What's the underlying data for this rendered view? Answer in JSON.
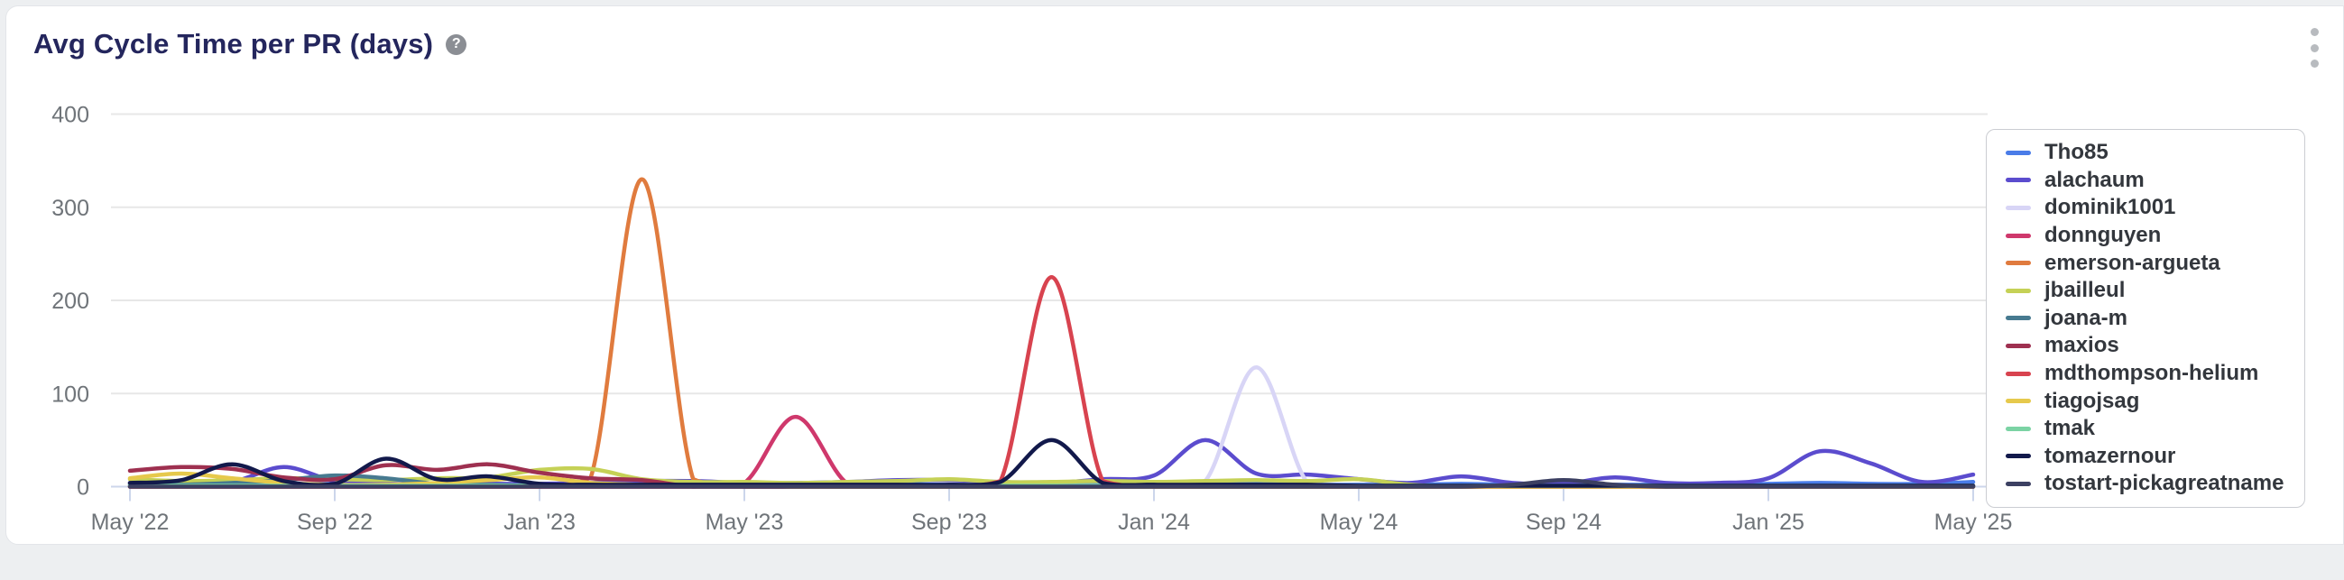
{
  "header": {
    "title": "Avg Cycle Time per PR (days)",
    "help_glyph": "?"
  },
  "chart_data": {
    "type": "line",
    "title": "Avg Cycle Time per PR (days)",
    "xlabel": "",
    "ylabel": "",
    "x_unit": "month",
    "x_range": [
      "May '22",
      "May '25"
    ],
    "ylim": [
      0,
      400
    ],
    "y_ticks": [
      0,
      100,
      200,
      300,
      400
    ],
    "x_tick_labels": [
      "May '22",
      "Sep '22",
      "Jan '23",
      "May '23",
      "Sep '23",
      "Jan '24",
      "May '24",
      "Sep '24",
      "Jan '25",
      "May '25"
    ],
    "grid": "horizontal",
    "legend_position": "right",
    "months": [
      "May 22",
      "Jun 22",
      "Jul 22",
      "Aug 22",
      "Sep 22",
      "Oct 22",
      "Nov 22",
      "Dec 22",
      "Jan 23",
      "Feb 23",
      "Mar 23",
      "Apr 23",
      "May 23",
      "Jun 23",
      "Jul 23",
      "Aug 23",
      "Sep 23",
      "Oct 23",
      "Nov 23",
      "Dec 23",
      "Jan 24",
      "Feb 24",
      "Mar 24",
      "Apr 24",
      "May 24",
      "Jun 24",
      "Jul 24",
      "Aug 24",
      "Sep 24",
      "Oct 24",
      "Nov 24",
      "Dec 24",
      "Jan 25",
      "Feb 25",
      "Mar 25",
      "Apr 25",
      "May 25"
    ],
    "series": [
      {
        "name": "Tho85",
        "color": "#4a7ce8",
        "values": [
          4,
          3,
          2,
          2,
          3,
          2,
          2,
          3,
          2,
          2,
          3,
          4,
          3,
          2,
          2,
          3,
          2,
          2,
          2,
          2,
          3,
          4,
          3,
          2,
          2,
          2,
          3,
          2,
          2,
          2,
          2,
          2,
          3,
          4,
          3,
          3,
          5
        ]
      },
      {
        "name": "alachaum",
        "color": "#5b4cce",
        "values": [
          4,
          3,
          5,
          21,
          6,
          3,
          3,
          3,
          3,
          4,
          6,
          6,
          4,
          4,
          5,
          7,
          7,
          5,
          4,
          8,
          12,
          50,
          14,
          13,
          8,
          4,
          11,
          4,
          3,
          10,
          4,
          4,
          9,
          38,
          25,
          5,
          13
        ]
      },
      {
        "name": "dominik1001",
        "color": "#d8d5f6",
        "values": [
          0,
          0,
          0,
          0,
          0,
          0,
          0,
          0,
          0,
          0,
          0,
          0,
          0,
          0,
          0,
          0,
          0,
          0,
          0,
          0,
          2,
          6,
          128,
          4,
          0,
          0,
          0,
          0,
          0,
          0,
          0,
          0,
          0,
          0,
          0,
          0,
          0
        ]
      },
      {
        "name": "donnguyen",
        "color": "#cf386c",
        "values": [
          0,
          0,
          0,
          0,
          0,
          0,
          0,
          0,
          0,
          0,
          0,
          0,
          4,
          75,
          4,
          0,
          0,
          0,
          0,
          0,
          0,
          0,
          0,
          0,
          0,
          0,
          0,
          0,
          0,
          0,
          0,
          0,
          0,
          0,
          0,
          0,
          0
        ]
      },
      {
        "name": "emerson-argueta",
        "color": "#e07b3e",
        "values": [
          0,
          0,
          0,
          0,
          0,
          0,
          0,
          0,
          0,
          10,
          330,
          8,
          0,
          0,
          0,
          0,
          0,
          0,
          0,
          0,
          0,
          0,
          0,
          0,
          0,
          0,
          0,
          0,
          0,
          0,
          0,
          0,
          0,
          0,
          0,
          0,
          0
        ]
      },
      {
        "name": "jbailleul",
        "color": "#c5d156",
        "values": [
          8,
          6,
          7,
          9,
          8,
          7,
          9,
          10,
          18,
          19,
          8,
          5,
          5,
          4,
          5,
          6,
          8,
          5,
          5,
          6,
          5,
          6,
          7,
          6,
          8,
          2,
          0,
          0,
          0,
          0,
          0,
          0,
          0,
          0,
          0,
          0,
          0
        ]
      },
      {
        "name": "joana-m",
        "color": "#477a90",
        "values": [
          2,
          2,
          4,
          7,
          12,
          9,
          3,
          2,
          1,
          1,
          1,
          1,
          1,
          1,
          1,
          0,
          0,
          0,
          0,
          0,
          0,
          0,
          0,
          0,
          0,
          0,
          0,
          0,
          0,
          0,
          0,
          0,
          0,
          0,
          0,
          0,
          0
        ]
      },
      {
        "name": "maxios",
        "color": "#9e3050",
        "values": [
          17,
          21,
          19,
          10,
          8,
          23,
          18,
          24,
          15,
          9,
          7,
          0,
          0,
          0,
          0,
          0,
          0,
          0,
          0,
          0,
          0,
          0,
          0,
          0,
          0,
          0,
          0,
          0,
          0,
          0,
          0,
          0,
          0,
          0,
          0,
          0,
          0
        ]
      },
      {
        "name": "mdthompson-helium",
        "color": "#d8434f",
        "values": [
          0,
          0,
          0,
          0,
          0,
          0,
          0,
          0,
          0,
          0,
          0,
          0,
          0,
          0,
          0,
          0,
          0,
          6,
          225,
          6,
          0,
          0,
          0,
          0,
          0,
          0,
          0,
          0,
          0,
          0,
          0,
          0,
          0,
          0,
          0,
          0,
          0
        ]
      },
      {
        "name": "tiagojsag",
        "color": "#e6c94c",
        "values": [
          9,
          14,
          9,
          4,
          2,
          2,
          4,
          7,
          10,
          4,
          2,
          1,
          1,
          0,
          0,
          0,
          0,
          0,
          0,
          0,
          0,
          0,
          0,
          0,
          0,
          0,
          0,
          0,
          0,
          0,
          0,
          0,
          0,
          0,
          0,
          0,
          0
        ]
      },
      {
        "name": "tmak",
        "color": "#7bd3a4",
        "values": [
          1,
          1,
          1,
          1,
          1,
          1,
          1,
          1,
          1,
          1,
          1,
          1,
          1,
          1,
          1,
          1,
          1,
          1,
          1,
          1,
          1,
          1,
          1,
          1,
          1,
          1,
          1,
          1,
          1,
          1,
          1,
          1,
          1,
          1,
          1,
          1,
          1
        ]
      },
      {
        "name": "tomazernour",
        "color": "#12194b",
        "values": [
          4,
          7,
          24,
          6,
          3,
          30,
          8,
          11,
          3,
          2,
          2,
          2,
          2,
          2,
          2,
          2,
          2,
          5,
          50,
          4,
          2,
          2,
          2,
          2,
          1,
          1,
          1,
          1,
          1,
          1,
          1,
          1,
          1,
          1,
          1,
          1,
          1
        ]
      },
      {
        "name": "tostart-pickagreatname",
        "color": "#3c4062",
        "values": [
          0,
          0,
          0,
          0,
          0,
          0,
          0,
          0,
          0,
          0,
          0,
          0,
          0,
          0,
          0,
          0,
          0,
          0,
          0,
          0,
          0,
          0,
          0,
          0,
          0,
          0,
          0,
          2,
          7,
          2,
          0,
          0,
          0,
          0,
          0,
          0,
          0
        ]
      }
    ]
  },
  "colors": {
    "grid_line": "#e7e7e7",
    "axis_line": "#ccd6eb",
    "axis_label": "#6f7479",
    "title": "#24265d",
    "legend_text": "#33373d",
    "card_bg": "#ffffff",
    "page_bg": "#edeff1"
  }
}
